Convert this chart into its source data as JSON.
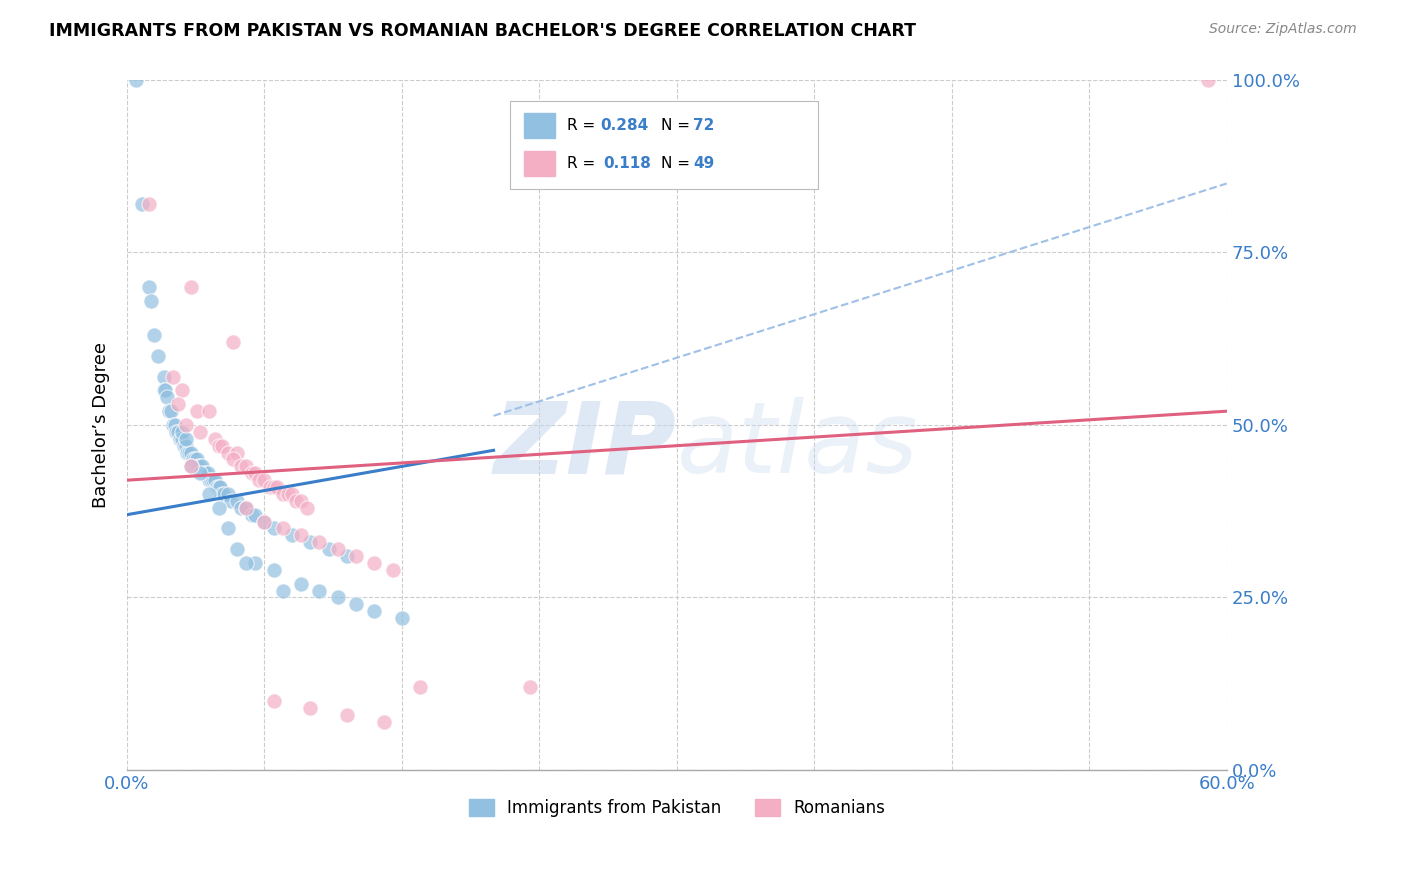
{
  "title": "IMMIGRANTS FROM PAKISTAN VS ROMANIAN BACHELOR'S DEGREE CORRELATION CHART",
  "source": "Source: ZipAtlas.com",
  "ylabel": "Bachelor’s Degree",
  "ytick_vals": [
    0,
    25,
    50,
    75,
    100
  ],
  "blue_color": "#92c0e0",
  "pink_color": "#f4afc5",
  "blue_line_color": "#3a7dc9",
  "pink_line_color": "#e06080",
  "dash_color": "#a0c0e8",
  "watermark_zip": "ZIP",
  "watermark_atlas": "atlas",
  "pakistan_points": [
    [
      0.5,
      100.0
    ],
    [
      0.8,
      82.0
    ],
    [
      1.2,
      70.0
    ],
    [
      1.3,
      68.0
    ],
    [
      1.5,
      63.0
    ],
    [
      1.7,
      60.0
    ],
    [
      2.0,
      57.0
    ],
    [
      2.0,
      55.0
    ],
    [
      2.1,
      55.0
    ],
    [
      2.2,
      54.0
    ],
    [
      2.3,
      52.0
    ],
    [
      2.4,
      52.0
    ],
    [
      2.5,
      50.0
    ],
    [
      2.6,
      50.0
    ],
    [
      2.7,
      49.0
    ],
    [
      2.8,
      49.0
    ],
    [
      2.9,
      48.0
    ],
    [
      3.0,
      48.0
    ],
    [
      3.1,
      47.0
    ],
    [
      3.2,
      47.0
    ],
    [
      3.3,
      46.0
    ],
    [
      3.4,
      46.0
    ],
    [
      3.5,
      46.0
    ],
    [
      3.6,
      45.0
    ],
    [
      3.7,
      45.0
    ],
    [
      3.8,
      45.0
    ],
    [
      3.9,
      44.0
    ],
    [
      4.0,
      44.0
    ],
    [
      4.1,
      44.0
    ],
    [
      4.2,
      43.0
    ],
    [
      4.3,
      43.0
    ],
    [
      4.4,
      43.0
    ],
    [
      4.5,
      42.0
    ],
    [
      4.6,
      42.0
    ],
    [
      4.7,
      42.0
    ],
    [
      4.8,
      42.0
    ],
    [
      4.9,
      41.0
    ],
    [
      5.0,
      41.0
    ],
    [
      5.1,
      41.0
    ],
    [
      5.2,
      40.0
    ],
    [
      5.3,
      40.0
    ],
    [
      5.5,
      40.0
    ],
    [
      5.7,
      39.0
    ],
    [
      6.0,
      39.0
    ],
    [
      6.2,
      38.0
    ],
    [
      6.5,
      38.0
    ],
    [
      6.8,
      37.0
    ],
    [
      7.0,
      37.0
    ],
    [
      7.5,
      36.0
    ],
    [
      8.0,
      35.0
    ],
    [
      9.0,
      34.0
    ],
    [
      10.0,
      33.0
    ],
    [
      11.0,
      32.0
    ],
    [
      12.0,
      31.0
    ],
    [
      3.5,
      44.0
    ],
    [
      4.0,
      43.0
    ],
    [
      5.5,
      35.0
    ],
    [
      6.0,
      32.0
    ],
    [
      7.0,
      30.0
    ],
    [
      8.0,
      29.0
    ],
    [
      9.5,
      27.0
    ],
    [
      10.5,
      26.0
    ],
    [
      11.5,
      25.0
    ],
    [
      12.5,
      24.0
    ],
    [
      13.5,
      23.0
    ],
    [
      15.0,
      22.0
    ],
    [
      3.0,
      49.0
    ],
    [
      3.2,
      48.0
    ],
    [
      4.5,
      40.0
    ],
    [
      5.0,
      38.0
    ],
    [
      6.5,
      30.0
    ],
    [
      8.5,
      26.0
    ]
  ],
  "romanian_points": [
    [
      1.2,
      82.0
    ],
    [
      3.5,
      70.0
    ],
    [
      5.8,
      62.0
    ],
    [
      2.5,
      57.0
    ],
    [
      3.0,
      55.0
    ],
    [
      3.8,
      52.0
    ],
    [
      4.5,
      52.0
    ],
    [
      2.8,
      53.0
    ],
    [
      3.2,
      50.0
    ],
    [
      4.0,
      49.0
    ],
    [
      4.8,
      48.0
    ],
    [
      5.0,
      47.0
    ],
    [
      5.2,
      47.0
    ],
    [
      5.5,
      46.0
    ],
    [
      6.0,
      46.0
    ],
    [
      5.8,
      45.0
    ],
    [
      6.2,
      44.0
    ],
    [
      6.5,
      44.0
    ],
    [
      6.8,
      43.0
    ],
    [
      7.0,
      43.0
    ],
    [
      7.2,
      42.0
    ],
    [
      7.5,
      42.0
    ],
    [
      7.8,
      41.0
    ],
    [
      8.0,
      41.0
    ],
    [
      8.2,
      41.0
    ],
    [
      8.5,
      40.0
    ],
    [
      8.8,
      40.0
    ],
    [
      9.0,
      40.0
    ],
    [
      9.2,
      39.0
    ],
    [
      9.5,
      39.0
    ],
    [
      9.8,
      38.0
    ],
    [
      3.5,
      44.0
    ],
    [
      6.5,
      38.0
    ],
    [
      7.5,
      36.0
    ],
    [
      8.5,
      35.0
    ],
    [
      9.5,
      34.0
    ],
    [
      10.5,
      33.0
    ],
    [
      11.5,
      32.0
    ],
    [
      12.5,
      31.0
    ],
    [
      13.5,
      30.0
    ],
    [
      14.5,
      29.0
    ],
    [
      16.0,
      12.0
    ],
    [
      22.0,
      12.0
    ],
    [
      8.0,
      10.0
    ],
    [
      10.0,
      9.0
    ],
    [
      12.0,
      8.0
    ],
    [
      14.0,
      7.0
    ],
    [
      59.0,
      100.0
    ]
  ],
  "blue_trend": [
    0,
    60,
    37,
    65
  ],
  "pink_trend": [
    0,
    60,
    42,
    52
  ],
  "dash_trend": [
    0,
    60,
    37,
    90
  ],
  "xmin": 0,
  "xmax": 60,
  "ymin": 0,
  "ymax": 100,
  "background_color": "#ffffff",
  "grid_color": "#cccccc"
}
